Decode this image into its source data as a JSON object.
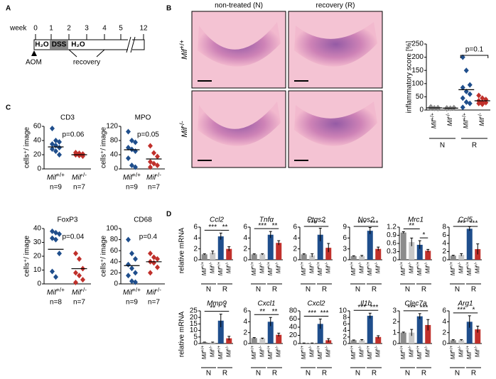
{
  "panels": {
    "a": "A",
    "b": "B",
    "c": "C",
    "d": "D"
  },
  "genotype": {
    "gene": "Mif",
    "wt": "+/+",
    "ko": "-/-"
  },
  "groups": [
    "N",
    "R"
  ],
  "timeline": {
    "axis_label": "week",
    "ticks": [
      "0",
      "1",
      "2",
      "3",
      "4",
      "5",
      "12"
    ],
    "water": "H₂O",
    "dss": "DSS",
    "aom": "AOM",
    "recovery": "recovery"
  },
  "histology": {
    "columns": [
      "non-treated (N)",
      "recovery (R)"
    ]
  },
  "mrna_label": "relative mRNA",
  "bar_colors": [
    "#8c8c8c",
    "#c8c8c8",
    "#1f4e8c",
    "#c0302b"
  ],
  "chart_data": [
    {
      "type": "strip",
      "y_label": "inflammatory score [%]",
      "ylim": [
        0,
        250
      ],
      "yticks": [
        0,
        50,
        100,
        150,
        200,
        250
      ],
      "annotation": "p=0.1",
      "series": [
        {
          "color": "#8c8c8c",
          "values": [
            10,
            8,
            5,
            12,
            6,
            9,
            7
          ],
          "mean": 8
        },
        {
          "color": "#8c8c8c",
          "values": [
            8,
            6,
            9,
            5,
            7
          ],
          "mean": 7
        },
        {
          "color": "#1f4e8c",
          "values": [
            200,
            150,
            95,
            85,
            70,
            60,
            45,
            30,
            25,
            10
          ],
          "mean": 77
        },
        {
          "color": "#c0302b",
          "values": [
            55,
            45,
            40,
            35,
            30,
            28,
            25,
            22
          ],
          "mean": 35
        }
      ]
    },
    {
      "type": "strip",
      "title": "CD3",
      "y_label": "cells⁺/ image",
      "ylim": [
        0,
        60
      ],
      "yticks": [
        0,
        20,
        40,
        60
      ],
      "annotation": "p=0.06",
      "counts": [
        "n=9",
        "n=7"
      ],
      "series": [
        {
          "color": "#1f4e8c",
          "values": [
            57,
            40,
            38,
            35,
            33,
            30,
            28,
            25,
            20
          ],
          "mean": 31
        },
        {
          "color": "#c0302b",
          "values": [
            23,
            22,
            21,
            20,
            19,
            18,
            20
          ],
          "mean": 20
        }
      ]
    },
    {
      "type": "strip",
      "title": "MPO",
      "y_label": "cells⁺/ image",
      "ylim": [
        0,
        120
      ],
      "yticks": [
        0,
        40,
        80,
        120
      ],
      "annotation": "p=0.05",
      "counts": [
        "n=9",
        "n=7"
      ],
      "series": [
        {
          "color": "#1f4e8c",
          "values": [
            105,
            80,
            75,
            60,
            55,
            50,
            30,
            10,
            5
          ],
          "mean": 54
        },
        {
          "color": "#c0302b",
          "values": [
            65,
            45,
            35,
            20,
            15,
            10,
            5
          ],
          "mean": 28
        }
      ]
    },
    {
      "type": "strip",
      "title": "FoxP3",
      "y_label": "cells⁺/ image",
      "ylim": [
        0,
        40
      ],
      "yticks": [
        0,
        10,
        20,
        30,
        40
      ],
      "annotation": "p=0.04",
      "counts": [
        "n=8",
        "n=7"
      ],
      "series": [
        {
          "color": "#1f4e8c",
          "values": [
            38,
            37,
            36,
            33,
            32,
            22,
            9,
            5
          ],
          "mean": 25
        },
        {
          "color": "#c0302b",
          "values": [
            22,
            18,
            11,
            8,
            6,
            3,
            1
          ],
          "mean": 11
        }
      ]
    },
    {
      "type": "strip",
      "title": "CD68",
      "y_label": "cells⁺/ image",
      "ylim": [
        0,
        100
      ],
      "yticks": [
        0,
        20,
        40,
        60,
        80,
        100
      ],
      "annotation": "p=0.4",
      "counts": [
        "n=9",
        "n=7"
      ],
      "series": [
        {
          "color": "#1f4e8c",
          "values": [
            80,
            55,
            45,
            35,
            28,
            20,
            15,
            5,
            3
          ],
          "mean": 33
        },
        {
          "color": "#c0302b",
          "values": [
            55,
            48,
            45,
            40,
            38,
            30,
            20
          ],
          "mean": 40
        }
      ]
    },
    {
      "type": "bar",
      "title": "Ccl2",
      "ylim": [
        0,
        6
      ],
      "yticks": [
        0,
        2,
        4,
        6
      ],
      "values": [
        1,
        1.3,
        4.3,
        2
      ],
      "errors": [
        0.1,
        0.3,
        0.6,
        0.4
      ],
      "significance": [
        "***",
        "**"
      ]
    },
    {
      "type": "bar",
      "title": "Tnfα",
      "ylim": [
        0,
        6
      ],
      "yticks": [
        0,
        2,
        4,
        6
      ],
      "values": [
        1,
        1,
        4.6,
        3.1
      ],
      "errors": [
        0.1,
        0.1,
        0.6,
        0.4
      ],
      "significance": [
        "***",
        "**"
      ]
    },
    {
      "type": "bar",
      "title": "Ptgs2",
      "ylim": [
        0,
        6
      ],
      "yticks": [
        0,
        2,
        4,
        6
      ],
      "values": [
        1,
        0.8,
        4.6,
        2.2
      ],
      "errors": [
        0.1,
        0.3,
        1.2,
        0.8
      ],
      "significance": [
        "***",
        "*"
      ]
    },
    {
      "type": "bar",
      "title": "Nos2",
      "ylim": [
        0,
        9
      ],
      "yticks": [
        0,
        3,
        6,
        9
      ],
      "values": [
        1,
        1,
        8,
        3
      ],
      "errors": [
        0.1,
        0.2,
        0.9,
        0.5
      ],
      "significance": [
        "***",
        "***"
      ]
    },
    {
      "type": "bar",
      "title": "Mrc1",
      "ylim": [
        0,
        1.2
      ],
      "yticks": [
        0,
        0.3,
        0.6,
        0.9,
        1.2
      ],
      "values": [
        1,
        0.65,
        0.55,
        0.33
      ],
      "errors": [
        0.03,
        0.15,
        0.15,
        0.05
      ],
      "significance": [
        "**",
        "*"
      ]
    },
    {
      "type": "bar",
      "title": "Ccl5",
      "ylim": [
        0,
        8
      ],
      "yticks": [
        0,
        2,
        4,
        6,
        8
      ],
      "values": [
        1,
        1.2,
        7.6,
        2.6
      ],
      "errors": [
        0.1,
        0.3,
        0.5,
        1.3
      ],
      "significance": [
        "***",
        "***"
      ]
    },
    {
      "type": "bar",
      "title": "Mmp9",
      "ylim": [
        0,
        25
      ],
      "yticks": [
        0,
        5,
        10,
        15,
        20,
        25
      ],
      "values": [
        1,
        0.8,
        17.5,
        4
      ],
      "errors": [
        0.1,
        0.3,
        5,
        1.5
      ],
      "significance": [
        "**",
        "*"
      ]
    },
    {
      "type": "bar",
      "title": "Cxcl1",
      "ylim": [
        0,
        6
      ],
      "yticks": [
        0,
        2,
        4,
        6
      ],
      "values": [
        1,
        0.9,
        4,
        1.6
      ],
      "errors": [
        0.1,
        0.1,
        0.8,
        0.3
      ],
      "significance": [
        "**",
        "**"
      ]
    },
    {
      "type": "bar",
      "title": "Cxcl2",
      "ylim": [
        0,
        80
      ],
      "yticks": [
        0,
        20,
        40,
        60,
        80
      ],
      "values": [
        1,
        1,
        48,
        8
      ],
      "errors": [
        0.2,
        0.3,
        12,
        4
      ],
      "significance": [
        "***",
        "***"
      ]
    },
    {
      "type": "bar",
      "title": "Il1b",
      "ylim": [
        0,
        10
      ],
      "yticks": [
        0,
        2,
        4,
        6,
        8,
        10
      ],
      "values": [
        1,
        1,
        8.5,
        2
      ],
      "errors": [
        0.1,
        0.2,
        0.8,
        0.4
      ],
      "significance": [
        "***",
        "***"
      ]
    },
    {
      "type": "bar",
      "title": "Clec7a",
      "ylim": [
        0,
        3
      ],
      "yticks": [
        0,
        1,
        2,
        3
      ],
      "values": [
        1,
        1,
        2.5,
        1.7
      ],
      "errors": [
        0.05,
        0.3,
        0.25,
        0.5
      ],
      "significance": [
        "***",
        "***"
      ]
    },
    {
      "type": "bar",
      "title": "Arg1",
      "ylim": [
        0,
        6
      ],
      "yticks": [
        0,
        2,
        4,
        6
      ],
      "values": [
        0.6,
        0.6,
        4,
        2.6
      ],
      "errors": [
        0.1,
        0.1,
        1.1,
        0.6
      ],
      "significance": [
        "***",
        "*"
      ]
    }
  ]
}
